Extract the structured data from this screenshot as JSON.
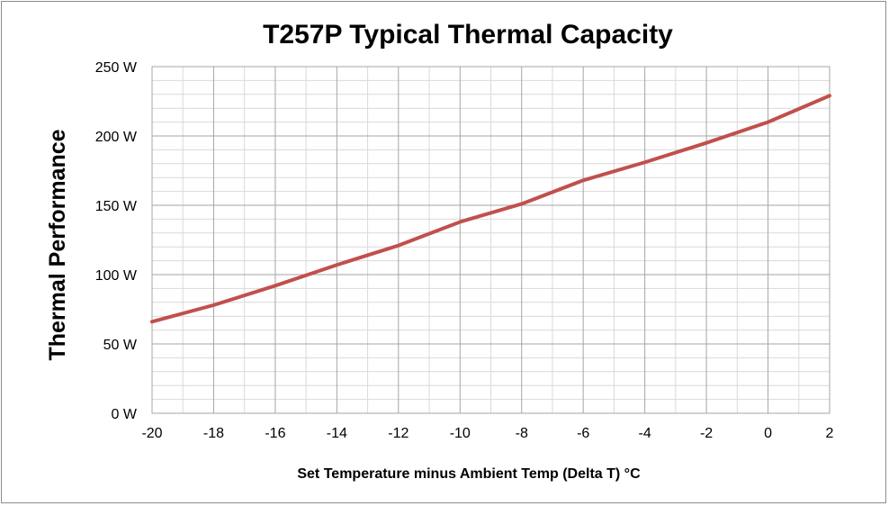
{
  "chart_data": {
    "type": "line",
    "title": "T257P Typical Thermal Capacity",
    "xlabel": "Set Temperature minus Ambient Temp  (Delta T) °C",
    "ylabel": "Thermal Performance",
    "xlim": [
      -20,
      2
    ],
    "ylim": [
      0,
      250
    ],
    "x_ticks": [
      -20,
      -18,
      -16,
      -14,
      -12,
      -10,
      -8,
      -6,
      -4,
      -2,
      0,
      2
    ],
    "x_tick_labels": [
      "-20",
      "-18",
      "-16",
      "-14",
      "-12",
      "-10",
      "-8",
      "-6",
      "-4",
      "-2",
      "0",
      "2"
    ],
    "y_ticks": [
      0,
      50,
      100,
      150,
      200,
      250
    ],
    "y_tick_labels": [
      "0 W",
      "50 W",
      "100 W",
      "150 W",
      "200 W",
      "250 W"
    ],
    "grid": true,
    "legend": "none",
    "series": [
      {
        "color": "#c0504d",
        "x": [
          -20,
          -18,
          -16,
          -14,
          -12,
          -10,
          -8,
          -6,
          -4,
          -2,
          0,
          2
        ],
        "values": [
          66,
          78,
          92,
          107,
          121,
          138,
          151,
          168,
          181,
          195,
          210,
          229
        ]
      }
    ],
    "colors": {
      "grid_major": "#a6a6a6",
      "grid_minor": "#d9d9d9"
    }
  }
}
